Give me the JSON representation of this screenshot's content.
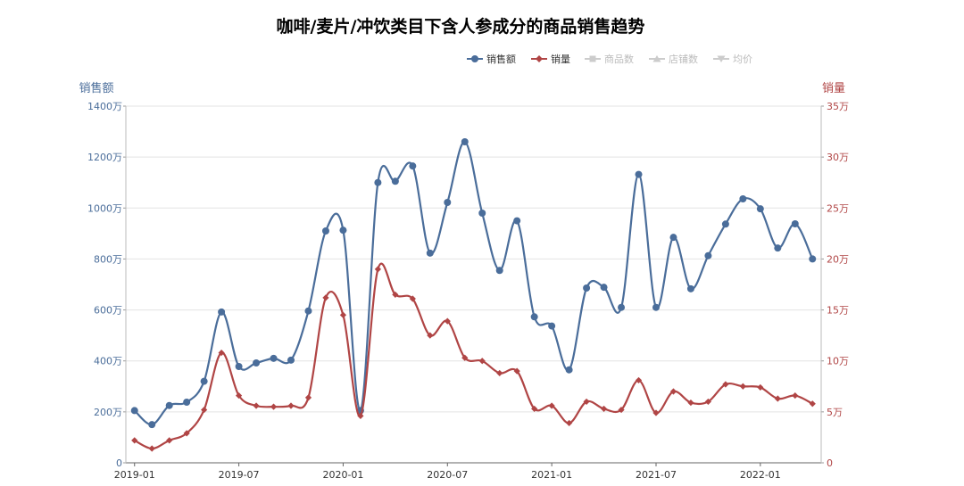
{
  "chart_data": {
    "type": "line",
    "title": "咖啡/麦片/冲饮类目下含人参成分的商品销售趋势",
    "left_axis": {
      "label": "销售额",
      "color": "#4a6d9a",
      "range": [
        0,
        1400
      ],
      "ticks": [
        "0",
        "200万",
        "400万",
        "600万",
        "800万",
        "1000万",
        "1200万",
        "1400万"
      ]
    },
    "right_axis": {
      "label": "销量",
      "color": "#b04545",
      "range": [
        0,
        35
      ],
      "ticks": [
        "0",
        "5万",
        "10万",
        "15万",
        "20万",
        "25万",
        "30万",
        "35万"
      ]
    },
    "x_tick_labels": [
      "2019-01",
      "2019-07",
      "2020-01",
      "2020-07",
      "2021-01",
      "2021-07",
      "2022-01"
    ],
    "x": [
      "2019-01",
      "2019-02",
      "2019-03",
      "2019-04",
      "2019-05",
      "2019-06",
      "2019-07",
      "2019-08",
      "2019-09",
      "2019-10",
      "2019-11",
      "2019-12",
      "2020-01",
      "2020-02",
      "2020-03",
      "2020-04",
      "2020-05",
      "2020-06",
      "2020-07",
      "2020-08",
      "2020-09",
      "2020-10",
      "2020-11",
      "2020-12",
      "2021-01",
      "2021-02",
      "2021-03",
      "2021-04",
      "2021-05",
      "2021-06",
      "2021-07",
      "2021-08",
      "2021-09",
      "2021-10",
      "2021-11",
      "2021-12",
      "2022-01",
      "2022-02",
      "2022-03",
      "2022-04"
    ],
    "series": [
      {
        "name": "销售额",
        "axis": "left",
        "unit": "万",
        "color": "#4a6d9a",
        "marker": "circle",
        "values": [
          205,
          150,
          225,
          238,
          320,
          592,
          378,
          392,
          410,
          403,
          596,
          910,
          913,
          205,
          1100,
          1105,
          1165,
          823,
          1022,
          1260,
          980,
          755,
          950,
          573,
          537,
          365,
          686,
          689,
          610,
          1132,
          610,
          885,
          683,
          813,
          937,
          1036,
          997,
          843,
          938,
          800
        ]
      },
      {
        "name": "销量",
        "axis": "right",
        "unit": "万",
        "color": "#b04545",
        "marker": "diamond",
        "values": [
          2.2,
          1.4,
          2.2,
          2.9,
          5.2,
          10.8,
          6.6,
          5.6,
          5.5,
          5.6,
          6.4,
          16.2,
          14.5,
          4.6,
          19.0,
          16.5,
          16.1,
          12.5,
          13.9,
          10.3,
          10.0,
          8.8,
          9.0,
          5.3,
          5.6,
          3.9,
          6.0,
          5.3,
          5.2,
          8.1,
          4.9,
          7.0,
          5.9,
          6.0,
          7.7,
          7.5,
          7.4,
          6.3,
          6.6,
          5.8
        ]
      }
    ],
    "legend": {
      "position": "top-right",
      "items": [
        {
          "label": "销售额",
          "color": "#4a6d9a",
          "icon": "circle-line",
          "active": true
        },
        {
          "label": "销量",
          "color": "#b04545",
          "icon": "diamond-line",
          "active": true
        },
        {
          "label": "商品数",
          "color": "#cccccc",
          "icon": "square-line",
          "active": false
        },
        {
          "label": "店铺数",
          "color": "#cccccc",
          "icon": "triangle-line",
          "active": false
        },
        {
          "label": "均价",
          "color": "#cccccc",
          "icon": "triangle-down-line",
          "active": false
        }
      ]
    },
    "grid": true
  }
}
